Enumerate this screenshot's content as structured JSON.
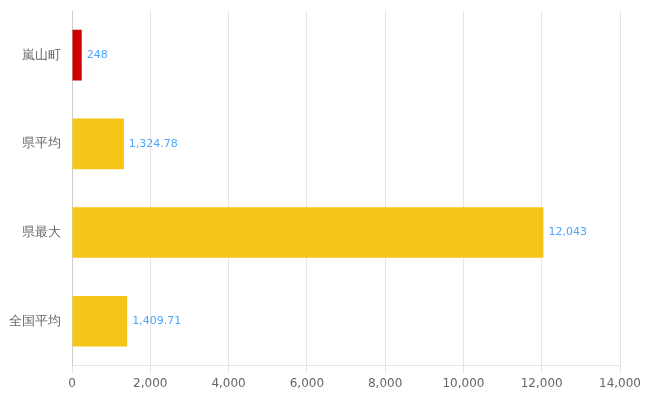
{
  "chart_data": {
    "type": "bar",
    "orientation": "horizontal",
    "categories": [
      "嵐山町",
      "県平均",
      "県最大",
      "全国平均"
    ],
    "values": [
      248,
      1324.78,
      12043,
      1409.71
    ],
    "value_labels": [
      "248",
      "1,324.78",
      "12,043",
      "1,409.71"
    ],
    "data_labels": true,
    "colors": [
      "#cc0000",
      "#f5c518",
      "#f5c518",
      "#f5c518"
    ],
    "xlim": [
      0,
      14000
    ],
    "xticks": [
      0,
      {
        "value": 2000,
        "label": "2,000"
      },
      {
        "value": 4000,
        "label": "4,000"
      },
      {
        "value": 6000,
        "label": "6,000"
      },
      {
        "value": 8000,
        "label": "8,000"
      },
      {
        "value": 10000,
        "label": "10,000"
      },
      {
        "value": 12000,
        "label": "12,000"
      },
      {
        "value": 14000,
        "label": "14,000"
      }
    ],
    "grid": true
  }
}
